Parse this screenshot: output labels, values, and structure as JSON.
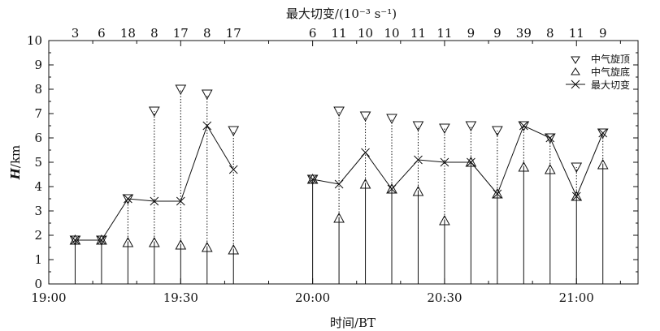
{
  "chart_data": {
    "type": "line",
    "title": "最大切变/(10⁻³ s⁻¹)",
    "xlabel": "时间/BT",
    "ylabel_main": "H",
    "ylabel_unit": "/km",
    "xlim": [
      "19:00",
      "21:14"
    ],
    "ylim": [
      0,
      10
    ],
    "y_ticks": [
      0,
      1,
      2,
      3,
      4,
      5,
      6,
      7,
      8,
      9,
      10
    ],
    "x_tick_labels": [
      "19:00",
      "19:30",
      "20:00",
      "20:30",
      "21:00"
    ],
    "legend_position": "top-right",
    "legend": [
      {
        "name": "中气旋顶",
        "marker": "triangle-down"
      },
      {
        "name": "中气旋底",
        "marker": "triangle-up"
      },
      {
        "name": "最大切变",
        "marker": "x-line"
      }
    ],
    "times": [
      "19:06",
      "19:12",
      "19:18",
      "19:24",
      "19:30",
      "19:36",
      "19:42",
      "20:00",
      "20:06",
      "20:12",
      "20:18",
      "20:24",
      "20:30",
      "20:36",
      "20:42",
      "20:48",
      "20:54",
      "21:00",
      "21:06"
    ],
    "max_shear_labels": [
      3,
      6,
      18,
      8,
      17,
      8,
      17,
      6,
      11,
      10,
      10,
      11,
      11,
      9,
      9,
      39,
      8,
      11,
      9
    ],
    "series": [
      {
        "name": "中气旋顶",
        "values": [
          1.8,
          1.8,
          3.5,
          7.1,
          8.0,
          7.8,
          6.3,
          4.3,
          7.1,
          6.9,
          6.8,
          6.5,
          6.4,
          6.5,
          6.3,
          6.5,
          6.0,
          4.8,
          6.2
        ]
      },
      {
        "name": "中气旋底",
        "values": [
          1.8,
          1.8,
          1.7,
          1.7,
          1.6,
          1.5,
          1.4,
          4.3,
          2.7,
          4.1,
          3.9,
          3.8,
          2.6,
          5.0,
          3.7,
          4.8,
          4.7,
          3.6,
          4.9
        ]
      },
      {
        "name": "最大切变",
        "values": [
          1.8,
          1.8,
          3.5,
          3.4,
          3.4,
          6.5,
          4.7,
          4.3,
          4.1,
          5.4,
          3.9,
          5.1,
          5.0,
          5.0,
          3.7,
          6.5,
          6.0,
          3.6,
          6.2
        ]
      }
    ]
  }
}
